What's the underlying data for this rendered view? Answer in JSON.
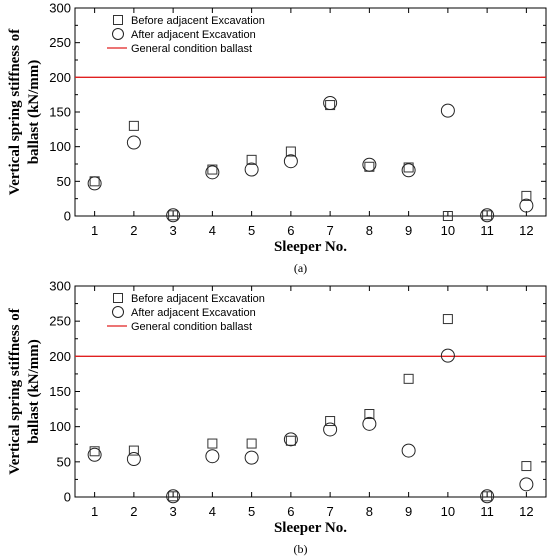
{
  "chart_data": [
    {
      "type": "scatter",
      "caption": "(a)",
      "xlabel": "Sleeper No.",
      "ylabel": [
        "Vertical spring stiffness of",
        "ballast (kN/mm)"
      ],
      "xlim": [
        0.5,
        12.5
      ],
      "ylim": [
        0,
        300
      ],
      "x_ticks": [
        1,
        2,
        3,
        4,
        5,
        6,
        7,
        8,
        9,
        10,
        11,
        12
      ],
      "y_ticks": [
        0,
        50,
        100,
        150,
        200,
        250,
        300
      ],
      "legend_position": "top-left",
      "grid": false,
      "reference_line": {
        "name": "General condition ballast",
        "value": 200,
        "color": "#e02020"
      },
      "series": [
        {
          "name": "Before adjacent Excavation",
          "marker": "square",
          "color": "#333333",
          "x": [
            1,
            2,
            3,
            4,
            5,
            6,
            7,
            8,
            9,
            10,
            11,
            12
          ],
          "values": [
            50,
            130,
            1,
            67,
            81,
            93,
            160,
            71,
            70,
            0,
            1,
            29
          ]
        },
        {
          "name": "After adjacent Excavation",
          "marker": "circle",
          "color": "#222222",
          "x": [
            1,
            2,
            3,
            4,
            5,
            6,
            7,
            8,
            9,
            10,
            11,
            12
          ],
          "values": [
            47,
            106,
            1,
            63,
            67,
            79,
            163,
            74,
            66,
            152,
            1,
            15
          ]
        }
      ]
    },
    {
      "type": "scatter",
      "caption": "(b)",
      "xlabel": "Sleeper No.",
      "ylabel": [
        "Vertical spring stiffness of",
        "ballast (kN/mm)"
      ],
      "xlim": [
        0.5,
        12.5
      ],
      "ylim": [
        0,
        300
      ],
      "x_ticks": [
        1,
        2,
        3,
        4,
        5,
        6,
        7,
        8,
        9,
        10,
        11,
        12
      ],
      "y_ticks": [
        0,
        50,
        100,
        150,
        200,
        250,
        300
      ],
      "legend_position": "top-left",
      "grid": false,
      "reference_line": {
        "name": "General condition ballast",
        "value": 200,
        "color": "#e02020"
      },
      "series": [
        {
          "name": "Before adjacent Excavation",
          "marker": "square",
          "color": "#333333",
          "x": [
            1,
            2,
            3,
            4,
            5,
            6,
            7,
            8,
            9,
            10,
            11,
            12
          ],
          "values": [
            65,
            66,
            1,
            76,
            76,
            80,
            108,
            118,
            168,
            253,
            1,
            44
          ]
        },
        {
          "name": "After adjacent Excavation",
          "marker": "circle",
          "color": "#222222",
          "x": [
            1,
            2,
            3,
            4,
            5,
            6,
            7,
            8,
            9,
            10,
            11,
            12
          ],
          "values": [
            60,
            54,
            1,
            58,
            56,
            82,
            96,
            104,
            66,
            201,
            1,
            18
          ]
        }
      ]
    }
  ]
}
